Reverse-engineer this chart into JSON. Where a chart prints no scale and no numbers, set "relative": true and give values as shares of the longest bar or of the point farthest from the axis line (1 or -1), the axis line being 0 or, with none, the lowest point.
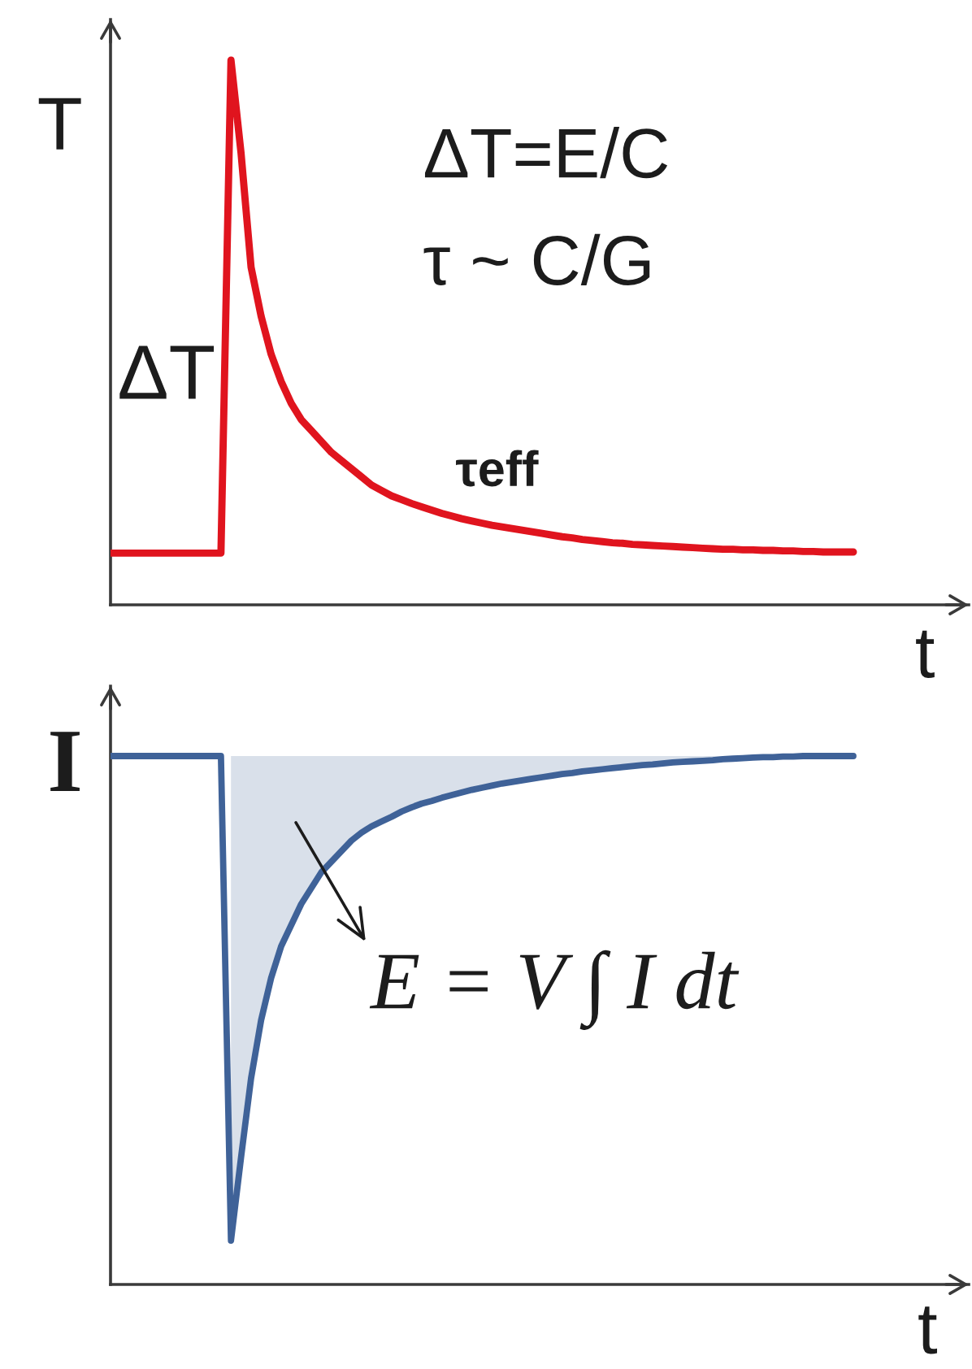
{
  "chart_data": [
    {
      "type": "line",
      "relative": true,
      "xlabel": "t",
      "ylabel": "T",
      "categories": [
        null,
        null,
        null,
        null,
        null,
        null,
        null,
        null,
        null,
        null,
        null,
        null,
        null,
        null,
        null,
        null,
        null,
        null,
        null,
        null,
        null,
        null,
        null,
        null,
        null,
        null,
        null,
        null,
        null,
        null,
        null,
        null,
        null,
        null,
        null,
        null,
        null,
        null,
        null,
        null,
        null,
        null,
        null,
        null,
        null,
        null,
        null,
        null,
        null,
        null,
        null,
        null,
        null,
        null,
        null,
        null,
        null,
        null,
        null,
        null,
        null,
        null,
        null,
        null,
        null,
        null,
        null,
        null,
        null,
        null,
        null,
        null,
        null,
        null,
        null
      ],
      "series": [
        {
          "color": "#e0141e",
          "values": [
            0.095,
            0.095,
            0.095,
            0.095,
            0.095,
            0.095,
            0.095,
            0.095,
            0.095,
            0.095,
            0.095,
            0.095,
            1.0,
            0.83,
            0.62,
            0.53,
            0.46,
            0.41,
            0.37,
            0.34,
            0.32,
            0.3,
            0.28,
            0.265,
            0.25,
            0.235,
            0.22,
            0.21,
            0.2,
            0.193,
            0.186,
            0.18,
            0.174,
            0.168,
            0.163,
            0.158,
            0.154,
            0.15,
            0.146,
            0.143,
            0.14,
            0.137,
            0.134,
            0.131,
            0.128,
            0.125,
            0.123,
            0.12,
            0.118,
            0.116,
            0.114,
            0.113,
            0.111,
            0.11,
            0.109,
            0.108,
            0.107,
            0.106,
            0.105,
            0.104,
            0.103,
            0.102,
            0.102,
            0.101,
            0.101,
            0.1,
            0.1,
            0.099,
            0.099,
            0.098,
            0.098,
            0.097,
            0.097,
            0.097,
            0.097
          ]
        }
      ],
      "annotations": [
        "ΔT=E/C",
        "τ ~ C/G",
        "ΔT",
        "τeff"
      ]
    },
    {
      "type": "line",
      "relative": true,
      "xlabel": "t",
      "ylabel": "I",
      "categories": [
        null,
        null,
        null,
        null,
        null,
        null,
        null,
        null,
        null,
        null,
        null,
        null,
        null,
        null,
        null,
        null,
        null,
        null,
        null,
        null,
        null,
        null,
        null,
        null,
        null,
        null,
        null,
        null,
        null,
        null,
        null,
        null,
        null,
        null,
        null,
        null,
        null,
        null,
        null,
        null,
        null,
        null,
        null,
        null,
        null,
        null,
        null,
        null,
        null,
        null,
        null,
        null,
        null,
        null,
        null,
        null,
        null,
        null,
        null,
        null,
        null,
        null,
        null,
        null,
        null,
        null,
        null,
        null,
        null,
        null,
        null,
        null,
        null,
        null,
        null
      ],
      "series": [
        {
          "color": "#3f6298",
          "values": [
            1.0,
            1.0,
            1.0,
            1.0,
            1.0,
            1.0,
            1.0,
            1.0,
            1.0,
            1.0,
            1.0,
            1.0,
            0.083,
            0.24,
            0.39,
            0.5,
            0.58,
            0.64,
            0.68,
            0.72,
            0.75,
            0.78,
            0.8,
            0.82,
            0.84,
            0.855,
            0.867,
            0.876,
            0.885,
            0.895,
            0.903,
            0.91,
            0.915,
            0.921,
            0.926,
            0.931,
            0.936,
            0.94,
            0.944,
            0.948,
            0.951,
            0.954,
            0.957,
            0.96,
            0.963,
            0.966,
            0.968,
            0.971,
            0.973,
            0.975,
            0.977,
            0.979,
            0.981,
            0.983,
            0.984,
            0.986,
            0.988,
            0.989,
            0.99,
            0.991,
            0.992,
            0.994,
            0.995,
            0.996,
            0.997,
            0.998,
            0.998,
            0.999,
            0.999,
            1.0,
            1.0,
            1.0,
            1.0,
            1.0,
            1.0
          ],
          "lower": [
            null,
            null,
            null,
            null,
            null,
            null,
            null,
            null,
            null,
            null,
            null,
            null,
            0.083,
            0.24,
            0.39,
            0.5,
            0.58,
            0.64,
            0.68,
            0.72,
            0.75,
            0.78,
            0.8,
            0.82,
            0.84,
            0.855,
            0.867,
            0.876,
            0.885,
            0.895,
            0.903,
            0.91,
            0.915,
            0.921,
            0.926,
            0.931,
            0.936,
            0.94,
            0.944,
            0.948,
            0.951,
            0.954,
            0.957,
            0.96,
            0.963,
            0.966,
            0.968,
            0.971,
            0.973,
            0.975,
            0.977,
            0.979,
            0.981,
            0.983,
            0.984,
            0.986,
            0.988,
            0.989,
            0.99,
            0.991,
            0.992,
            0.994,
            0.995,
            0.996,
            0.997,
            0.998,
            0.998,
            0.999,
            0.999,
            1.0,
            1.0,
            1.0,
            1.0,
            1.0,
            1.0
          ],
          "upper": [
            null,
            null,
            null,
            null,
            null,
            null,
            null,
            null,
            null,
            null,
            null,
            null,
            1.0,
            1.0,
            1.0,
            1.0,
            1.0,
            1.0,
            1.0,
            1.0,
            1.0,
            1.0,
            1.0,
            1.0,
            1.0,
            1.0,
            1.0,
            1.0,
            1.0,
            1.0,
            1.0,
            1.0,
            1.0,
            1.0,
            1.0,
            1.0,
            1.0,
            1.0,
            1.0,
            1.0,
            1.0,
            1.0,
            1.0,
            1.0,
            1.0,
            1.0,
            1.0,
            1.0,
            1.0,
            1.0,
            1.0,
            1.0,
            1.0,
            1.0,
            1.0,
            1.0,
            1.0,
            1.0,
            1.0,
            1.0,
            1.0,
            1.0,
            1.0,
            1.0,
            1.0,
            1.0,
            1.0,
            1.0,
            1.0,
            1.0,
            1.0,
            1.0,
            1.0,
            1.0,
            1.0
          ]
        }
      ],
      "annotations": [
        "E = V ∫ I dt"
      ]
    }
  ]
}
